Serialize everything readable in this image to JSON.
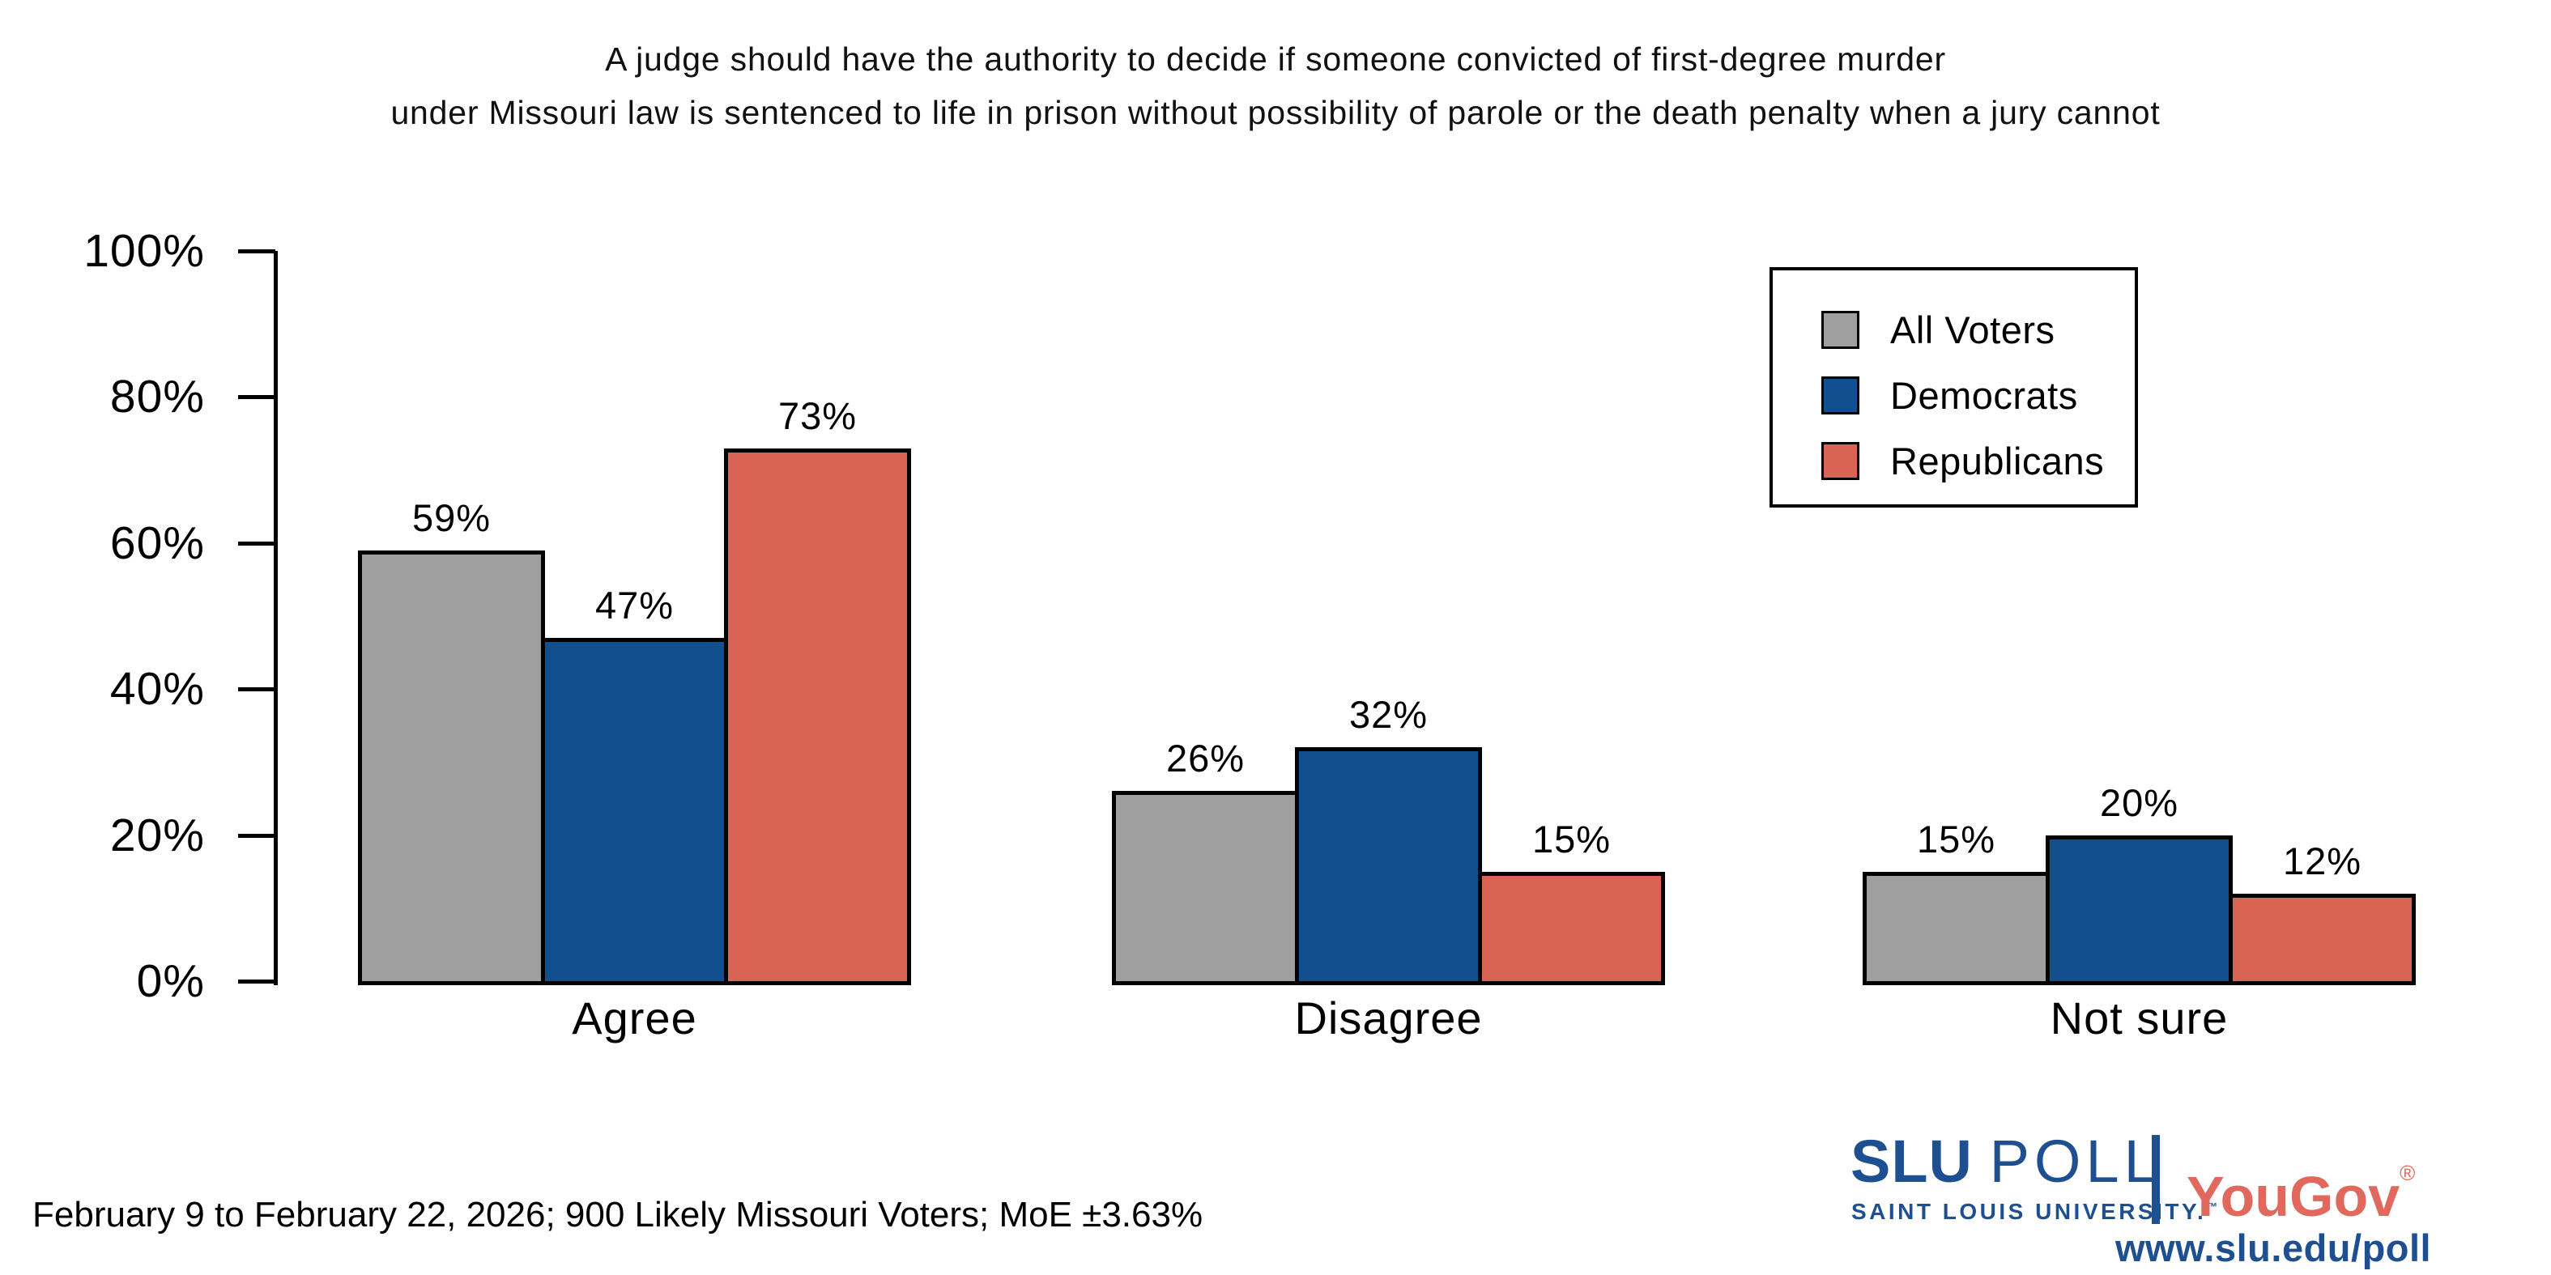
{
  "title": {
    "line1": "A judge should have the authority to decide if someone convicted of first-degree murder",
    "line2": "under Missouri law is sentenced to life in prison without possibility of parole or the death penalty when a jury cannot"
  },
  "chart_data": {
    "type": "bar",
    "categories": [
      "Agree",
      "Disagree",
      "Not sure"
    ],
    "series": [
      {
        "name": "All Voters",
        "color": "#9F9F9F",
        "values": [
          59,
          26,
          15
        ]
      },
      {
        "name": "Democrats",
        "color": "#124F8F",
        "values": [
          47,
          32,
          20
        ]
      },
      {
        "name": "Republicans",
        "color": "#D96456",
        "values": [
          73,
          15,
          12
        ]
      }
    ],
    "value_labels": [
      [
        "59%",
        "26%",
        "15%"
      ],
      [
        "47%",
        "32%",
        "20%"
      ],
      [
        "73%",
        "15%",
        "12%"
      ]
    ],
    "value_suffix": "%",
    "xlabel": "",
    "ylabel": "",
    "ylim": [
      0,
      100
    ],
    "yticks": [
      0,
      20,
      40,
      60,
      80,
      100
    ],
    "ytick_labels": [
      "0%",
      "20%",
      "40%",
      "60%",
      "80%",
      "100%"
    ],
    "grid": false,
    "legend_position": "upper right",
    "bar_outline_color": "#000000"
  },
  "footer": {
    "text": "February 9 to February 22, 2026; 900 Likely Missouri Voters; MoE ±3.63%"
  },
  "branding": {
    "slu_wordmark_bold": "SLU",
    "slu_wordmark_light": "POLL",
    "slu_subtext": "SAINT LOUIS UNIVERSITY.",
    "slu_trademark": "™",
    "partner_name": "YouGov",
    "partner_trademark": "®",
    "website": "www.slu.edu/poll",
    "slu_blue": "#1E4F91",
    "partner_red": "#E0685C"
  }
}
